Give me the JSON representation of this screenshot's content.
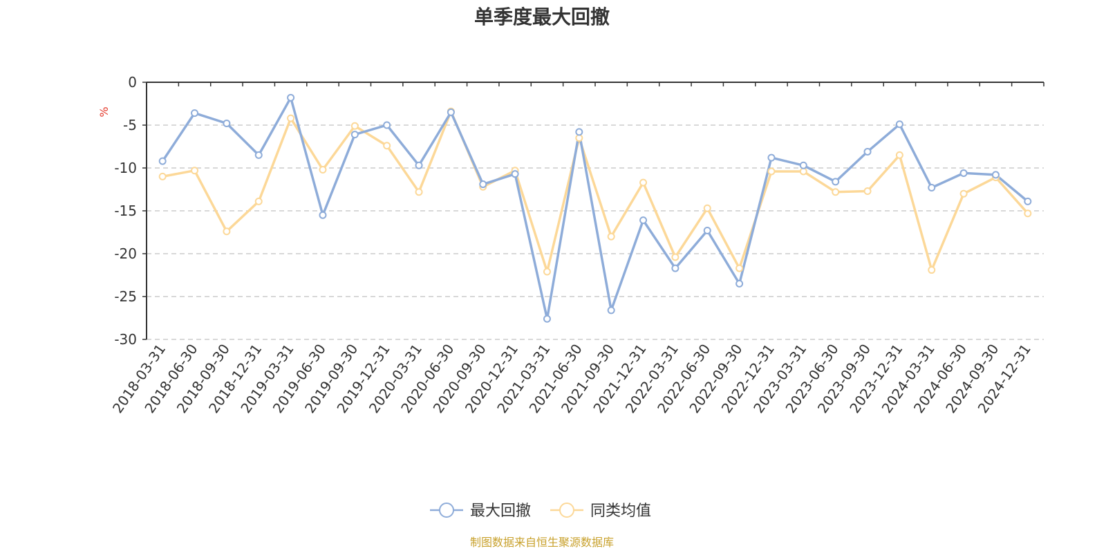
{
  "chart_data": {
    "type": "line",
    "title": "单季度最大回撤",
    "ylabel": "%",
    "xlabel": "",
    "ylim": [
      -30,
      0
    ],
    "yticks": [
      0,
      -5,
      -10,
      -15,
      -20,
      -25,
      -30
    ],
    "grid": true,
    "legend_position": "bottom-center",
    "categories": [
      "2018-03-31",
      "2018-06-30",
      "2018-09-30",
      "2018-12-31",
      "2019-03-31",
      "2019-06-30",
      "2019-09-30",
      "2019-12-31",
      "2020-03-31",
      "2020-06-30",
      "2020-09-30",
      "2020-12-31",
      "2021-03-31",
      "2021-06-30",
      "2021-09-30",
      "2021-12-31",
      "2022-03-31",
      "2022-06-30",
      "2022-09-30",
      "2022-12-31",
      "2023-03-31",
      "2023-06-30",
      "2023-09-30",
      "2023-12-31",
      "2024-03-31",
      "2024-06-30",
      "2024-09-30",
      "2024-12-31"
    ],
    "series": [
      {
        "name": "最大回撤",
        "color": "#8eacd9",
        "values": [
          -9.2,
          -3.6,
          -4.8,
          -8.5,
          -1.8,
          -15.5,
          -6.1,
          -5.0,
          -9.7,
          -3.5,
          -11.9,
          -10.7,
          -27.6,
          -5.8,
          -26.6,
          -16.1,
          -21.7,
          -17.3,
          -23.5,
          -8.8,
          -9.7,
          -11.6,
          -8.1,
          -4.9,
          -12.3,
          -10.6,
          -10.8,
          -13.9
        ]
      },
      {
        "name": "同类均值",
        "color": "#fcd898",
        "values": [
          -11.0,
          -10.3,
          -17.4,
          -13.9,
          -4.2,
          -10.2,
          -5.1,
          -7.4,
          -12.8,
          -3.4,
          -12.2,
          -10.3,
          -22.1,
          -6.5,
          -18.0,
          -11.7,
          -20.4,
          -14.7,
          -21.7,
          -10.4,
          -10.4,
          -12.8,
          -12.7,
          -8.5,
          -21.9,
          -13.0,
          -11.1,
          -15.3
        ]
      }
    ]
  },
  "source_note": "制图数据来自恒生聚源数据库",
  "colors": {
    "axis": "#333333",
    "grid": "#cccccc",
    "unit_label": "#e4392b",
    "source_note": "#c8a12c"
  }
}
